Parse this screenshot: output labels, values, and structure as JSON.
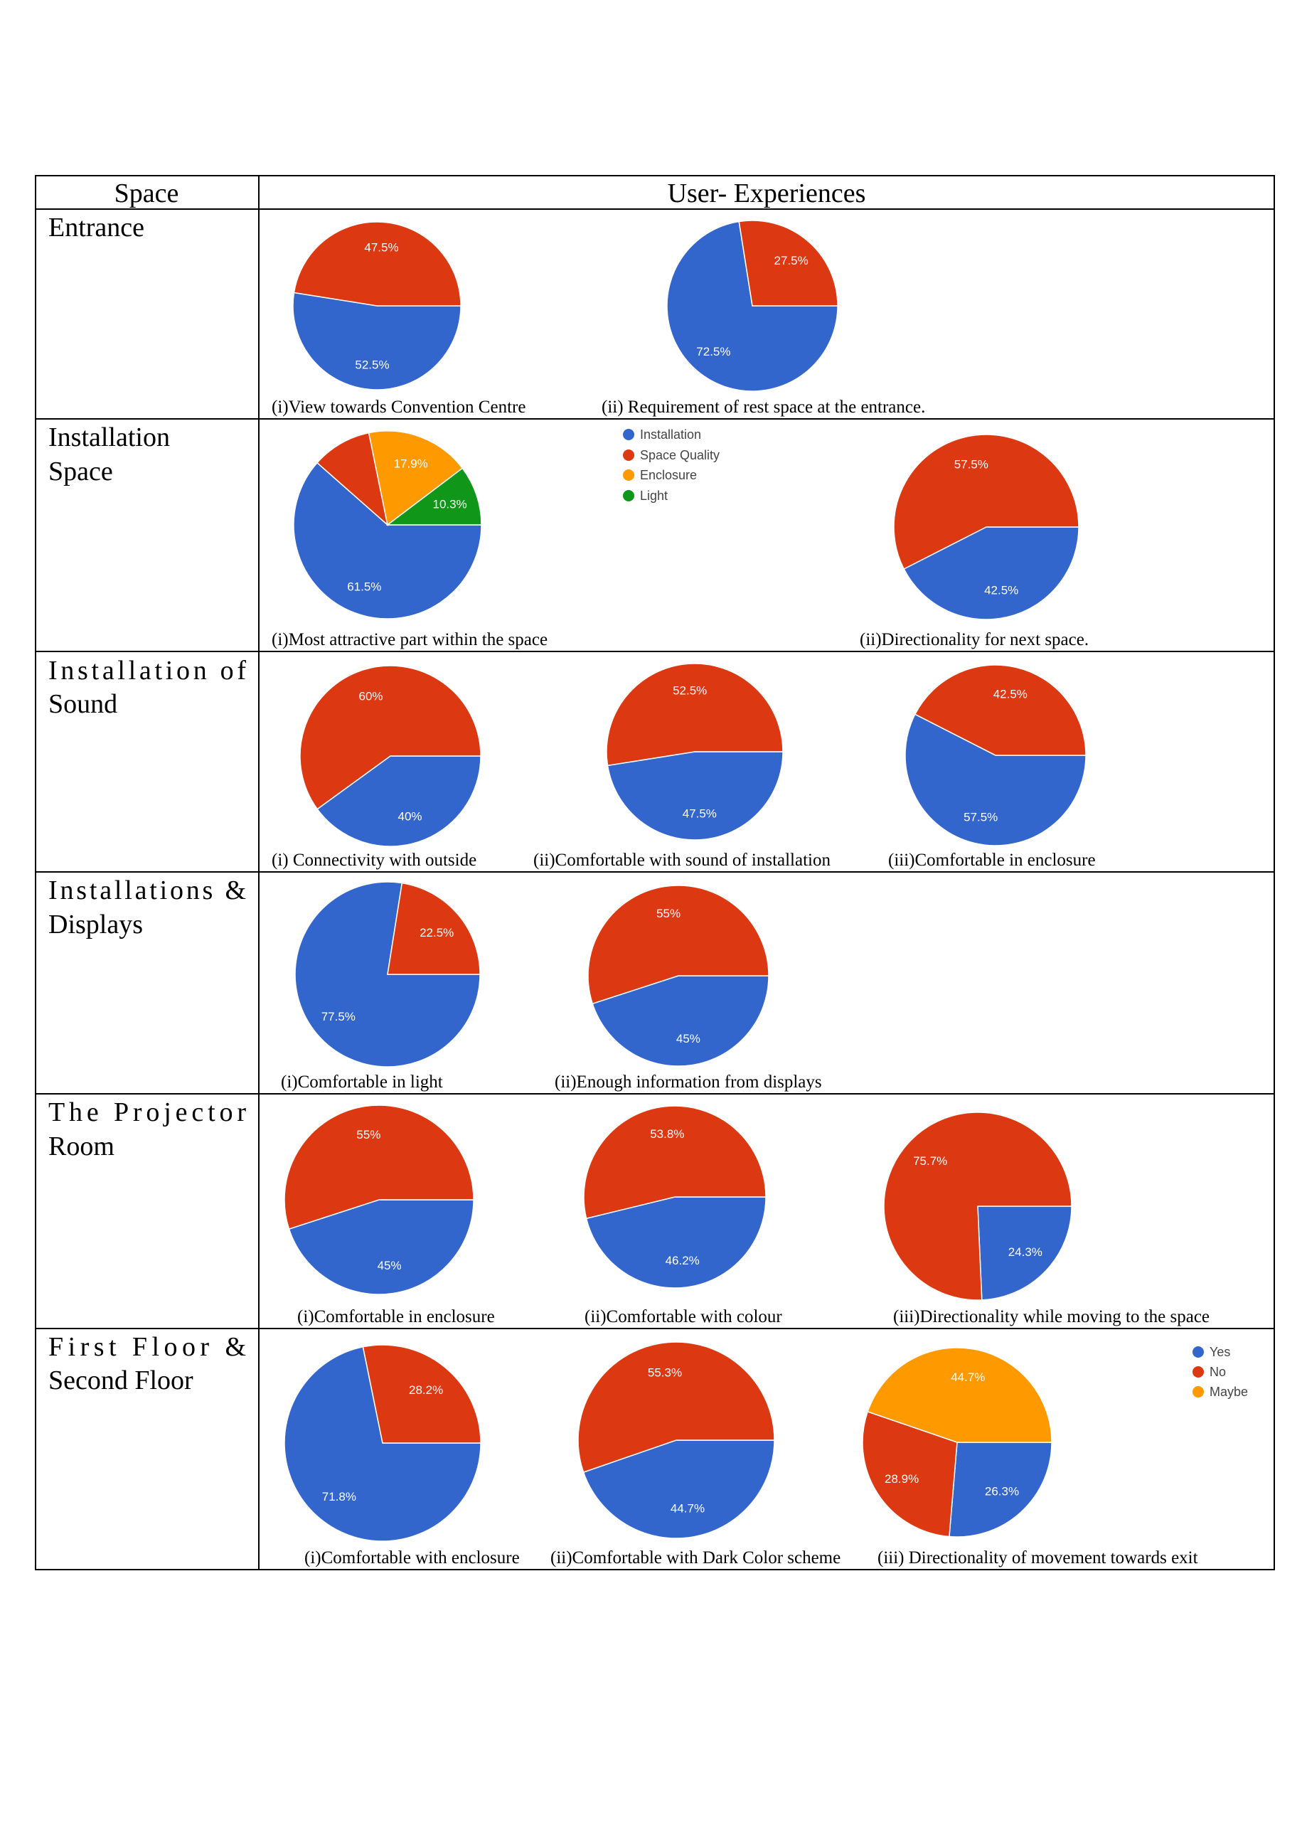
{
  "table": {
    "header_space": "Space",
    "header_experiences": "User- Experiences"
  },
  "colors": {
    "yes": "#3366cc",
    "no": "#dc3912",
    "maybe": "#ff9900",
    "light": "#109618"
  },
  "legends": {
    "installation_space": [
      {
        "label": "Installation",
        "color": "#3366cc"
      },
      {
        "label": "Space Quality",
        "color": "#dc3912"
      },
      {
        "label": "Enclosure",
        "color": "#ff9900"
      },
      {
        "label": "Light",
        "color": "#109618"
      }
    ],
    "floors": [
      {
        "label": "Yes",
        "color": "#3366cc"
      },
      {
        "label": "No",
        "color": "#dc3912"
      },
      {
        "label": "Maybe",
        "color": "#ff9900"
      }
    ]
  },
  "rows": [
    {
      "space": [
        "Entrance"
      ]
    },
    {
      "space": [
        "Installation",
        "Space"
      ]
    },
    {
      "space": [
        "Installation of",
        "Sound"
      ]
    },
    {
      "space": [
        "Installations &",
        "Displays"
      ]
    },
    {
      "space": [
        "The Projector",
        "Room"
      ]
    },
    {
      "space": [
        "First Floor &",
        "Second Floor"
      ]
    }
  ],
  "chart_data": [
    {
      "type": "pie",
      "title": "(i)View towards Convention Centre",
      "categories": [
        "Yes",
        "No"
      ],
      "values": [
        52.5,
        47.5
      ],
      "labels": [
        "52.5%",
        "47.5%"
      ]
    },
    {
      "type": "pie",
      "title": "(ii) Requirement of rest space at the entrance.",
      "categories": [
        "Yes",
        "No"
      ],
      "values": [
        72.5,
        27.5
      ],
      "labels": [
        "72.5%",
        "27.5%"
      ]
    },
    {
      "type": "pie",
      "title": "(i)Most attractive part within the space",
      "categories": [
        "Installation",
        "Space Quality",
        "Enclosure",
        "Light"
      ],
      "values": [
        61.5,
        10.3,
        17.9,
        10.3
      ],
      "labels": [
        "61.5%",
        "",
        "17.9%",
        "10.3%"
      ],
      "legend": "right"
    },
    {
      "type": "pie",
      "title": "(ii)Directionality for next space.",
      "categories": [
        "Yes",
        "No"
      ],
      "values": [
        42.5,
        57.5
      ],
      "labels": [
        "42.5%",
        "57.5%"
      ]
    },
    {
      "type": "pie",
      "title": "(i) Connectivity with outside",
      "categories": [
        "Yes",
        "No"
      ],
      "values": [
        40,
        60
      ],
      "labels": [
        "40%",
        "60%"
      ]
    },
    {
      "type": "pie",
      "title": "(ii)Comfortable with sound of installation",
      "categories": [
        "Yes",
        "No"
      ],
      "values": [
        47.5,
        52.5
      ],
      "labels": [
        "47.5%",
        "52.5%"
      ]
    },
    {
      "type": "pie",
      "title": "(iii)Comfortable in enclosure",
      "categories": [
        "Yes",
        "No"
      ],
      "values": [
        57.5,
        42.5
      ],
      "labels": [
        "57.5%",
        "42.5%"
      ]
    },
    {
      "type": "pie",
      "title": "(i)Comfortable in light",
      "categories": [
        "Yes",
        "No"
      ],
      "values": [
        77.5,
        22.5
      ],
      "labels": [
        "77.5%",
        "22.5%"
      ]
    },
    {
      "type": "pie",
      "title": "(ii)Enough information from displays",
      "categories": [
        "Yes",
        "No"
      ],
      "values": [
        45,
        55
      ],
      "labels": [
        "45%",
        "55%"
      ]
    },
    {
      "type": "pie",
      "title": "(i)Comfortable in enclosure",
      "categories": [
        "Yes",
        "No"
      ],
      "values": [
        45,
        55
      ],
      "labels": [
        "45%",
        "55%"
      ]
    },
    {
      "type": "pie",
      "title": "(ii)Comfortable with colour",
      "categories": [
        "Yes",
        "No"
      ],
      "values": [
        46.2,
        53.8
      ],
      "labels": [
        "46.2%",
        "53.8%"
      ]
    },
    {
      "type": "pie",
      "title": "(iii)Directionality while moving to the space",
      "categories": [
        "Yes",
        "No"
      ],
      "values": [
        24.3,
        75.7
      ],
      "labels": [
        "24.3%",
        "75.7%"
      ]
    },
    {
      "type": "pie",
      "title": "(i)Comfortable with enclosure",
      "categories": [
        "Yes",
        "No"
      ],
      "values": [
        71.8,
        28.2
      ],
      "labels": [
        "71.8%",
        "28.2%"
      ]
    },
    {
      "type": "pie",
      "title": "(ii)Comfortable with Dark Color scheme",
      "categories": [
        "Yes",
        "No"
      ],
      "values": [
        44.7,
        55.3
      ],
      "labels": [
        "44.7%",
        "55.3%"
      ]
    },
    {
      "type": "pie",
      "title": "(iii) Directionality of movement towards exit",
      "categories": [
        "Yes",
        "No",
        "Maybe"
      ],
      "values": [
        26.3,
        28.9,
        44.7
      ],
      "labels": [
        "26.3%",
        "28.9%",
        "44.7%"
      ],
      "legend": "top-right"
    }
  ]
}
